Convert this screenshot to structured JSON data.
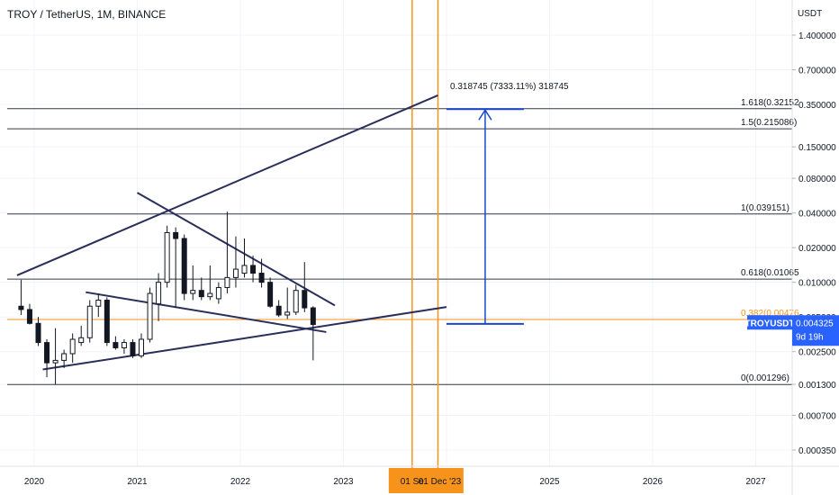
{
  "header": {
    "title": "TROY / TetherUS, 1M, BINANCE"
  },
  "colors": {
    "background": "#ffffff",
    "grid": "#f0f3fa",
    "text": "#131722",
    "candle_up": "#ffffff",
    "candle_down": "#131722",
    "trendline": "#2a2e5a",
    "fib_line": "#131722",
    "fib_382": "#f7931a",
    "date_marker": "#f7931a",
    "projection": "#1848cc",
    "price_tag": "#2962ff"
  },
  "chart_data": {
    "type": "candlestick",
    "symbol": "TROYUSDT",
    "interval": "1M",
    "exchange": "BINANCE",
    "y_axis": {
      "unit": "USDT",
      "scale": "log",
      "ticks": [
        "1.400000",
        "0.700000",
        "0.350000",
        "0.150000",
        "0.080000",
        "0.040000",
        "0.020000",
        "0.010000",
        "0.005000",
        "0.002500",
        "0.001300",
        "0.000700",
        "0.000350"
      ],
      "range": [
        0.00028,
        2.0
      ]
    },
    "x_axis": {
      "ticks": [
        "2020",
        "2021",
        "2022",
        "2023",
        "2025",
        "2026",
        "2027"
      ],
      "highlighted_ticks": [
        "01 Se",
        "01 Dec '23"
      ]
    },
    "candles": [
      {
        "t": "2019-11",
        "o": 0.0062,
        "h": 0.0105,
        "l": 0.0052,
        "c": 0.0058
      },
      {
        "t": "2019-12",
        "o": 0.0058,
        "h": 0.0065,
        "l": 0.0043,
        "c": 0.0044
      },
      {
        "t": "2020-01",
        "o": 0.0044,
        "h": 0.005,
        "l": 0.0028,
        "c": 0.003
      },
      {
        "t": "2020-02",
        "o": 0.003,
        "h": 0.0032,
        "l": 0.0015,
        "c": 0.002
      },
      {
        "t": "2020-03",
        "o": 0.002,
        "h": 0.004,
        "l": 0.0013,
        "c": 0.0021
      },
      {
        "t": "2020-04",
        "o": 0.0021,
        "h": 0.0026,
        "l": 0.0018,
        "c": 0.0024
      },
      {
        "t": "2020-05",
        "o": 0.0024,
        "h": 0.0036,
        "l": 0.002,
        "c": 0.0032
      },
      {
        "t": "2020-06",
        "o": 0.003,
        "h": 0.0042,
        "l": 0.0028,
        "c": 0.0033
      },
      {
        "t": "2020-07",
        "o": 0.0033,
        "h": 0.007,
        "l": 0.003,
        "c": 0.0062
      },
      {
        "t": "2020-08",
        "o": 0.0062,
        "h": 0.008,
        "l": 0.005,
        "c": 0.007
      },
      {
        "t": "2020-09",
        "o": 0.007,
        "h": 0.0074,
        "l": 0.0028,
        "c": 0.003
      },
      {
        "t": "2020-10",
        "o": 0.003,
        "h": 0.0034,
        "l": 0.0026,
        "c": 0.0027
      },
      {
        "t": "2020-11",
        "o": 0.0027,
        "h": 0.0032,
        "l": 0.0024,
        "c": 0.003
      },
      {
        "t": "2020-12",
        "o": 0.003,
        "h": 0.0032,
        "l": 0.0022,
        "c": 0.0023
      },
      {
        "t": "2021-01",
        "o": 0.0023,
        "h": 0.0036,
        "l": 0.0022,
        "c": 0.0032
      },
      {
        "t": "2021-02",
        "o": 0.0032,
        "h": 0.009,
        "l": 0.003,
        "c": 0.008
      },
      {
        "t": "2021-03",
        "o": 0.0065,
        "h": 0.012,
        "l": 0.0046,
        "c": 0.01
      },
      {
        "t": "2021-04",
        "o": 0.01,
        "h": 0.031,
        "l": 0.009,
        "c": 0.027
      },
      {
        "t": "2021-05",
        "o": 0.027,
        "h": 0.03,
        "l": 0.006,
        "c": 0.024
      },
      {
        "t": "2021-06",
        "o": 0.024,
        "h": 0.026,
        "l": 0.007,
        "c": 0.008
      },
      {
        "t": "2021-07",
        "o": 0.008,
        "h": 0.014,
        "l": 0.007,
        "c": 0.0085
      },
      {
        "t": "2021-08",
        "o": 0.0085,
        "h": 0.011,
        "l": 0.007,
        "c": 0.0075
      },
      {
        "t": "2021-09",
        "o": 0.0075,
        "h": 0.014,
        "l": 0.007,
        "c": 0.008
      },
      {
        "t": "2021-10",
        "o": 0.0072,
        "h": 0.01,
        "l": 0.0065,
        "c": 0.009
      },
      {
        "t": "2021-11",
        "o": 0.009,
        "h": 0.041,
        "l": 0.008,
        "c": 0.011
      },
      {
        "t": "2021-12",
        "o": 0.011,
        "h": 0.025,
        "l": 0.009,
        "c": 0.013
      },
      {
        "t": "2022-01",
        "o": 0.012,
        "h": 0.024,
        "l": 0.011,
        "c": 0.014
      },
      {
        "t": "2022-02",
        "o": 0.014,
        "h": 0.017,
        "l": 0.01,
        "c": 0.012
      },
      {
        "t": "2022-03",
        "o": 0.012,
        "h": 0.016,
        "l": 0.009,
        "c": 0.01
      },
      {
        "t": "2022-04",
        "o": 0.01,
        "h": 0.011,
        "l": 0.006,
        "c": 0.0062
      },
      {
        "t": "2022-05",
        "o": 0.0062,
        "h": 0.007,
        "l": 0.005,
        "c": 0.0052
      },
      {
        "t": "2022-06",
        "o": 0.0052,
        "h": 0.009,
        "l": 0.0048,
        "c": 0.0055
      },
      {
        "t": "2022-07",
        "o": 0.0055,
        "h": 0.0095,
        "l": 0.0052,
        "c": 0.0085
      },
      {
        "t": "2022-08",
        "o": 0.0085,
        "h": 0.015,
        "l": 0.0055,
        "c": 0.006
      },
      {
        "t": "2022-09",
        "o": 0.006,
        "h": 0.0062,
        "l": 0.0021,
        "c": 0.0043
      }
    ],
    "fib_levels": [
      {
        "label": "1.618(0.32152",
        "value": 0.32152
      },
      {
        "label": "1.5(0.215086)",
        "value": 0.215086
      },
      {
        "label": "1(0.039151)",
        "value": 0.039151
      },
      {
        "label": "0.618(0.01065",
        "value": 0.01065
      },
      {
        "label": "0.382(0.00476",
        "value": 0.00476,
        "highlight": true
      },
      {
        "label": "0(0.001296)",
        "value": 0.001296
      }
    ],
    "trendlines": [
      {
        "from": {
          "t": "2019-11",
          "p": 0.0115
        },
        "to": {
          "t": "2023-12",
          "p": 0.42
        }
      },
      {
        "from": {
          "t": "2021-01",
          "p": 0.06
        },
        "to": {
          "t": "2022-12",
          "p": 0.0063
        }
      },
      {
        "from": {
          "t": "2020-07",
          "p": 0.0082
        },
        "to": {
          "t": "2022-11",
          "p": 0.0037
        }
      },
      {
        "from": {
          "t": "2020-02",
          "p": 0.00175
        },
        "to": {
          "t": "2024-01",
          "p": 0.0061
        }
      }
    ],
    "date_markers": [
      "2023-09",
      "2023-12"
    ],
    "projection": {
      "label": "0.318745 (7333.11%) 318745",
      "from_t": "2024-01",
      "to_t": "2024-10",
      "start": 0.00435,
      "end": 0.3187
    },
    "last_price": {
      "symbol": "TROYUSDT",
      "value": "0.004325",
      "countdown": "9d 19h",
      "numeric": 0.004325
    }
  }
}
